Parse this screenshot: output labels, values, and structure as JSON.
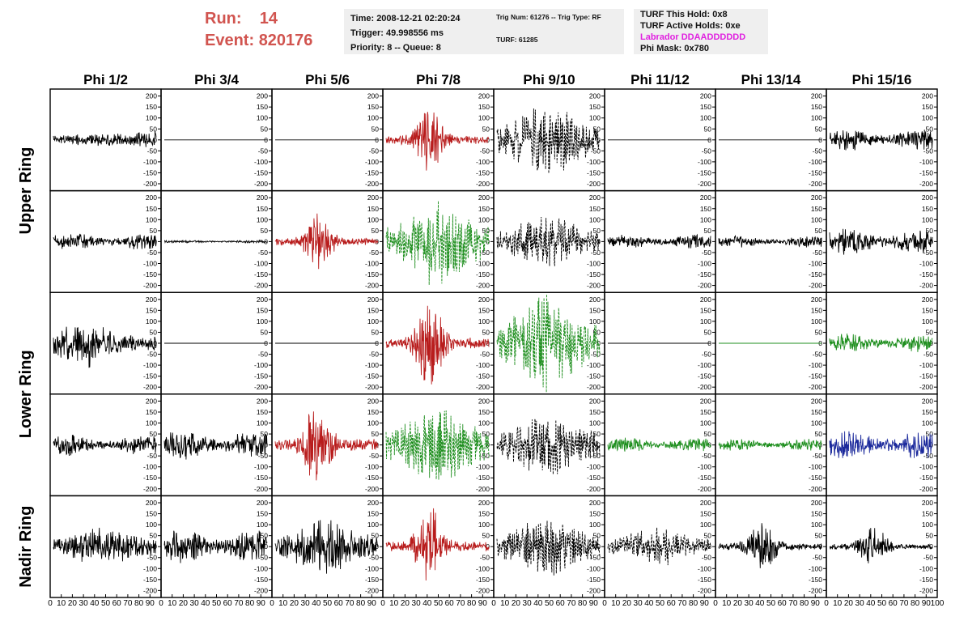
{
  "header": {
    "run_label": "Run:",
    "run_value": "14",
    "event_label": "Event:",
    "event_value": "820176"
  },
  "info_time": {
    "time": "Time: 2008-12-21 02:20:24",
    "trigger": "Trigger: 49.998556 ms",
    "priority": "Priority: 8 -- Queue: 8"
  },
  "info_trig": {
    "trig": "Trig Num: 61276 -- Trig Type: RF",
    "turf": "TURF: 61285"
  },
  "info_turf": {
    "this_hold": "TURF This Hold: 0x8",
    "active_holds": "TURF Active Holds: 0xe",
    "labrador": "Labrador DDAADDDDDD",
    "phi_mask": "Phi Mask: 0x780"
  },
  "colors": {
    "black": "#000000",
    "red": "#b81c1c",
    "green": "#1f8f1f",
    "blue": "#1c2a9c",
    "header_red": "#d1544f",
    "labrador_magenta": "#e020e0",
    "info_bg": "#efefef"
  },
  "chart_data": {
    "type": "line",
    "columns": [
      "Phi 1/2",
      "Phi 3/4",
      "Phi 5/6",
      "Phi 7/8",
      "Phi 9/10",
      "Phi 11/12",
      "Phi 13/14",
      "Phi 15/16"
    ],
    "rows": [
      "Upper Ring",
      "Upper Ring",
      "Lower Ring",
      "Lower Ring",
      "Nadir Ring"
    ],
    "ylim": [
      -230,
      230
    ],
    "yticks": [
      -200,
      -150,
      -100,
      -50,
      0,
      50,
      100,
      150,
      200
    ],
    "xlim": [
      0,
      100
    ],
    "xticks": [
      0,
      10,
      20,
      30,
      40,
      50,
      60,
      70,
      80,
      90,
      100
    ],
    "waveforms": [
      [
        {
          "color": "black",
          "dashed": false,
          "amplitude": 35,
          "envelope": "late",
          "flat": false
        },
        {
          "color": "black",
          "dashed": false,
          "amplitude": 0,
          "envelope": "flat",
          "flat": true
        },
        {
          "color": "black",
          "dashed": false,
          "amplitude": 0,
          "envelope": "flat",
          "flat": true
        },
        {
          "color": "red",
          "dashed": false,
          "amplitude": 140,
          "envelope": "pulse",
          "flat": false
        },
        {
          "color": "black",
          "dashed": true,
          "amplitude": 150,
          "envelope": "wide",
          "flat": false
        },
        {
          "color": "black",
          "dashed": false,
          "amplitude": 0,
          "envelope": "flat",
          "flat": true
        },
        {
          "color": "black",
          "dashed": false,
          "amplitude": 0,
          "envelope": "flat",
          "flat": true
        },
        {
          "color": "black",
          "dashed": false,
          "amplitude": 45,
          "envelope": "noise",
          "flat": false
        }
      ],
      [
        {
          "color": "black",
          "dashed": false,
          "amplitude": 35,
          "envelope": "noise",
          "flat": false
        },
        {
          "color": "black",
          "dashed": false,
          "amplitude": 6,
          "envelope": "noise",
          "flat": false
        },
        {
          "color": "red",
          "dashed": false,
          "amplitude": 125,
          "envelope": "pulse",
          "flat": false
        },
        {
          "color": "green",
          "dashed": true,
          "amplitude": 190,
          "envelope": "wide",
          "flat": false
        },
        {
          "color": "black",
          "dashed": true,
          "amplitude": 110,
          "envelope": "wide",
          "flat": false
        },
        {
          "color": "black",
          "dashed": false,
          "amplitude": 30,
          "envelope": "noise",
          "flat": false
        },
        {
          "color": "black",
          "dashed": false,
          "amplitude": 25,
          "envelope": "noise",
          "flat": false
        },
        {
          "color": "black",
          "dashed": false,
          "amplitude": 55,
          "envelope": "noise",
          "flat": false
        }
      ],
      [
        {
          "color": "black",
          "dashed": false,
          "amplitude": 100,
          "envelope": "early",
          "flat": false
        },
        {
          "color": "black",
          "dashed": false,
          "amplitude": 0,
          "envelope": "flat",
          "flat": true
        },
        {
          "color": "black",
          "dashed": false,
          "amplitude": 0,
          "envelope": "flat",
          "flat": true
        },
        {
          "color": "red",
          "dashed": false,
          "amplitude": 190,
          "envelope": "pulse",
          "flat": false
        },
        {
          "color": "green",
          "dashed": true,
          "amplitude": 200,
          "envelope": "wide",
          "flat": false
        },
        {
          "color": "black",
          "dashed": false,
          "amplitude": 0,
          "envelope": "flat",
          "flat": true
        },
        {
          "color": "green",
          "dashed": false,
          "amplitude": 0,
          "envelope": "flat",
          "flat": true
        },
        {
          "color": "green",
          "dashed": false,
          "amplitude": 40,
          "envelope": "noise",
          "flat": false
        }
      ],
      [
        {
          "color": "black",
          "dashed": false,
          "amplitude": 45,
          "envelope": "noise",
          "flat": false
        },
        {
          "color": "black",
          "dashed": false,
          "amplitude": 60,
          "envelope": "noise",
          "flat": false
        },
        {
          "color": "red",
          "dashed": false,
          "amplitude": 200,
          "envelope": "pulse",
          "flat": false
        },
        {
          "color": "green",
          "dashed": true,
          "amplitude": 170,
          "envelope": "wide",
          "flat": false
        },
        {
          "color": "black",
          "dashed": true,
          "amplitude": 130,
          "envelope": "wide",
          "flat": false
        },
        {
          "color": "green",
          "dashed": false,
          "amplitude": 30,
          "envelope": "noise",
          "flat": false
        },
        {
          "color": "green",
          "dashed": false,
          "amplitude": 25,
          "envelope": "noise",
          "flat": false
        },
        {
          "color": "blue",
          "dashed": false,
          "amplitude": 60,
          "envelope": "noise",
          "flat": false
        }
      ],
      [
        {
          "color": "black",
          "dashed": false,
          "amplitude": 80,
          "envelope": "wide",
          "flat": false
        },
        {
          "color": "black",
          "dashed": false,
          "amplitude": 70,
          "envelope": "noise",
          "flat": false
        },
        {
          "color": "black",
          "dashed": false,
          "amplitude": 110,
          "envelope": "wide",
          "flat": false
        },
        {
          "color": "red",
          "dashed": false,
          "amplitude": 170,
          "envelope": "pulse",
          "flat": false
        },
        {
          "color": "black",
          "dashed": true,
          "amplitude": 120,
          "envelope": "wide",
          "flat": false
        },
        {
          "color": "black",
          "dashed": true,
          "amplitude": 80,
          "envelope": "wide",
          "flat": false
        },
        {
          "color": "black",
          "dashed": false,
          "amplitude": 120,
          "envelope": "pulse",
          "flat": false
        },
        {
          "color": "black",
          "dashed": false,
          "amplitude": 90,
          "envelope": "pulse",
          "flat": false
        }
      ]
    ]
  }
}
